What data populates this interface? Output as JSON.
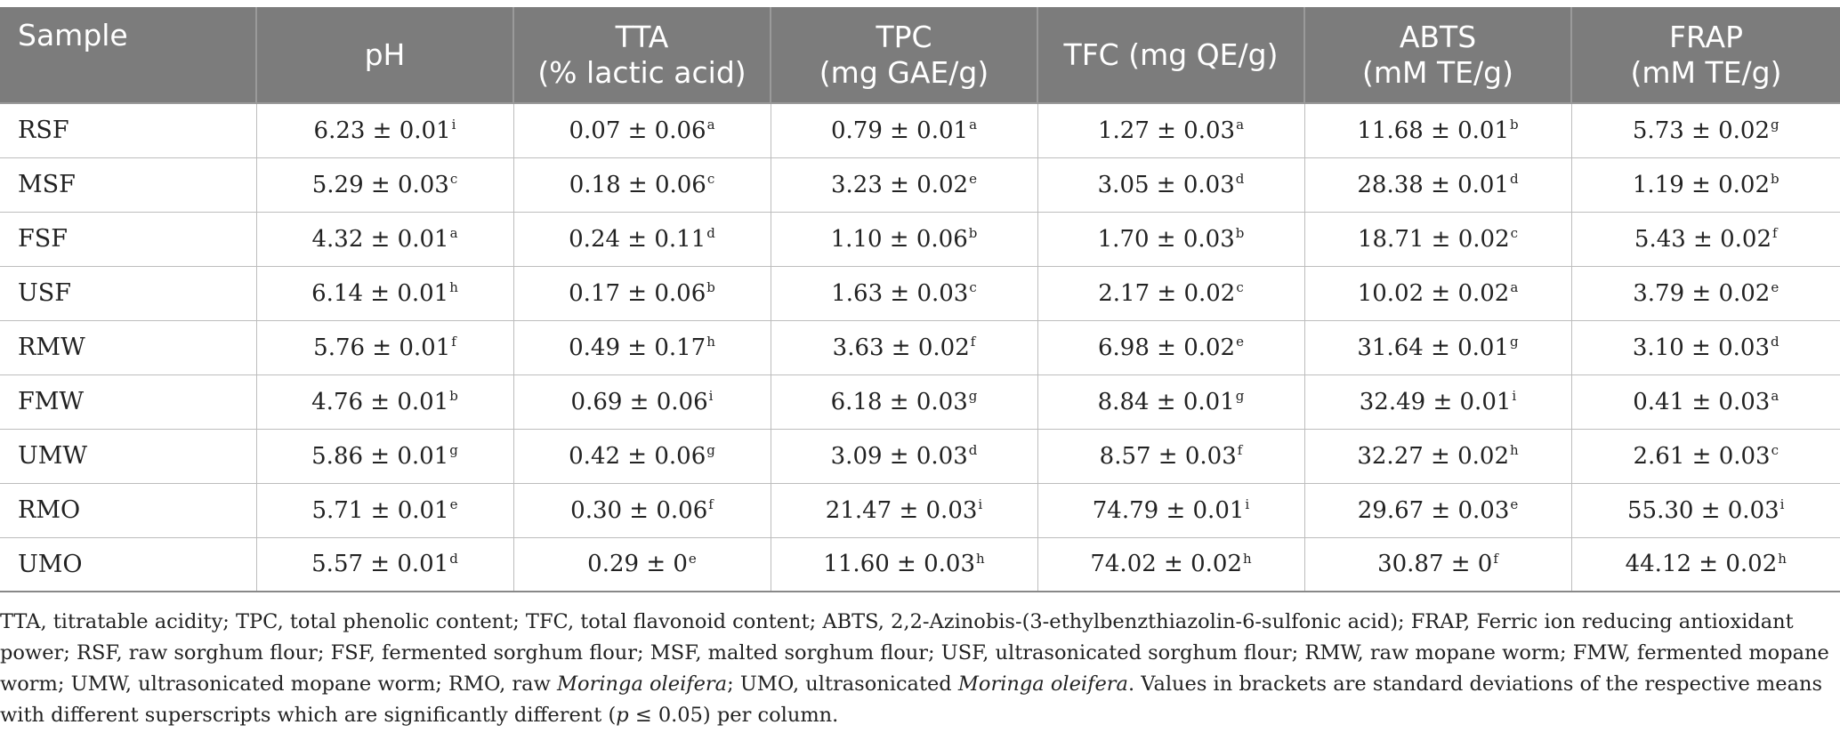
{
  "table": {
    "headers": [
      [
        "Sample"
      ],
      [
        "pH"
      ],
      [
        "TTA",
        "(% lactic acid)"
      ],
      [
        "TPC",
        "(mg GAE/g)"
      ],
      [
        "TFC (mg QE/g)"
      ],
      [
        "ABTS",
        "(mM TE/g)"
      ],
      [
        "FRAP",
        "(mM TE/g)"
      ]
    ],
    "rows": [
      {
        "sample": "RSF",
        "cells": [
          {
            "v": "6.23 ± 0.01",
            "s": "i"
          },
          {
            "v": "0.07 ± 0.06",
            "s": "a"
          },
          {
            "v": "0.79 ± 0.01",
            "s": "a"
          },
          {
            "v": "1.27 ± 0.03",
            "s": "a"
          },
          {
            "v": "11.68 ± 0.01",
            "s": "b"
          },
          {
            "v": "5.73 ± 0.02",
            "s": "g"
          }
        ]
      },
      {
        "sample": "MSF",
        "cells": [
          {
            "v": "5.29 ± 0.03",
            "s": "c"
          },
          {
            "v": "0.18 ± 0.06",
            "s": "c"
          },
          {
            "v": "3.23 ± 0.02",
            "s": "e"
          },
          {
            "v": "3.05 ± 0.03",
            "s": "d"
          },
          {
            "v": "28.38 ± 0.01",
            "s": "d"
          },
          {
            "v": "1.19 ± 0.02",
            "s": "b"
          }
        ]
      },
      {
        "sample": "FSF",
        "cells": [
          {
            "v": "4.32 ± 0.01",
            "s": "a"
          },
          {
            "v": "0.24 ± 0.11",
            "s": "d"
          },
          {
            "v": "1.10 ± 0.06",
            "s": "b"
          },
          {
            "v": "1.70 ± 0.03",
            "s": "b"
          },
          {
            "v": "18.71 ± 0.02",
            "s": "c"
          },
          {
            "v": "5.43 ± 0.02",
            "s": "f"
          }
        ]
      },
      {
        "sample": "USF",
        "cells": [
          {
            "v": "6.14 ± 0.01",
            "s": "h"
          },
          {
            "v": "0.17 ± 0.06",
            "s": "b"
          },
          {
            "v": "1.63 ± 0.03",
            "s": "c"
          },
          {
            "v": "2.17 ± 0.02",
            "s": "c"
          },
          {
            "v": "10.02 ± 0.02",
            "s": "a"
          },
          {
            "v": "3.79 ± 0.02",
            "s": "e"
          }
        ]
      },
      {
        "sample": "RMW",
        "cells": [
          {
            "v": "5.76 ± 0.01",
            "s": "f"
          },
          {
            "v": "0.49 ± 0.17",
            "s": "h"
          },
          {
            "v": "3.63 ± 0.02",
            "s": "f"
          },
          {
            "v": "6.98 ± 0.02",
            "s": "e"
          },
          {
            "v": "31.64 ± 0.01",
            "s": "g"
          },
          {
            "v": "3.10 ± 0.03",
            "s": "d"
          }
        ]
      },
      {
        "sample": "FMW",
        "cells": [
          {
            "v": "4.76 ± 0.01",
            "s": "b"
          },
          {
            "v": "0.69 ± 0.06",
            "s": "i"
          },
          {
            "v": "6.18 ± 0.03",
            "s": "g"
          },
          {
            "v": "8.84 ± 0.01",
            "s": "g"
          },
          {
            "v": "32.49 ± 0.01",
            "s": "i"
          },
          {
            "v": "0.41 ± 0.03",
            "s": "a"
          }
        ]
      },
      {
        "sample": "UMW",
        "cells": [
          {
            "v": "5.86 ± 0.01",
            "s": "g"
          },
          {
            "v": "0.42 ± 0.06",
            "s": "g"
          },
          {
            "v": "3.09 ± 0.03",
            "s": "d"
          },
          {
            "v": "8.57 ± 0.03",
            "s": "f"
          },
          {
            "v": "32.27 ± 0.02",
            "s": "h"
          },
          {
            "v": "2.61 ± 0.03",
            "s": "c"
          }
        ]
      },
      {
        "sample": "RMO",
        "cells": [
          {
            "v": "5.71 ± 0.01",
            "s": "e"
          },
          {
            "v": "0.30 ± 0.06",
            "s": "f"
          },
          {
            "v": "21.47 ± 0.03",
            "s": "i"
          },
          {
            "v": "74.79 ± 0.01",
            "s": "i"
          },
          {
            "v": "29.67 ± 0.03",
            "s": "e"
          },
          {
            "v": "55.30 ± 0.03",
            "s": "i"
          }
        ]
      },
      {
        "sample": "UMO",
        "cells": [
          {
            "v": "5.57 ± 0.01",
            "s": "d"
          },
          {
            "v": "0.29 ± 0",
            "s": "e"
          },
          {
            "v": "11.60 ± 0.03",
            "s": "h"
          },
          {
            "v": "74.02 ± 0.02",
            "s": "h"
          },
          {
            "v": "30.87 ± 0",
            "s": "f"
          },
          {
            "v": "44.12 ± 0.02",
            "s": "h"
          }
        ]
      }
    ]
  },
  "footnote": {
    "p1": "TTA, titratable acidity; TPC, total phenolic content; TFC, total flavonoid content; ABTS, 2,2-Azinobis-(3-ethylbenzthiazolin-6-sulfonic acid); FRAP, Ferric ion reducing antioxidant power; RSF, raw sorghum flour; FSF, fermented sorghum flour; MSF, malted sorghum flour; USF, ultrasonicated sorghum flour; RMW, raw mopane worm; FMW, fermented mopane worm; UMW, ultrasonicated mopane worm; RMO, raw ",
    "i1": "Moringa oleifera",
    "p2": "; UMO, ultrasonicated ",
    "i2": "Moringa oleifera",
    "p3": ". Values in brackets are standard deviations of the respective means with different superscripts which are significantly different (",
    "i3": "p",
    "p4": " ≤ 0.05) per column."
  }
}
